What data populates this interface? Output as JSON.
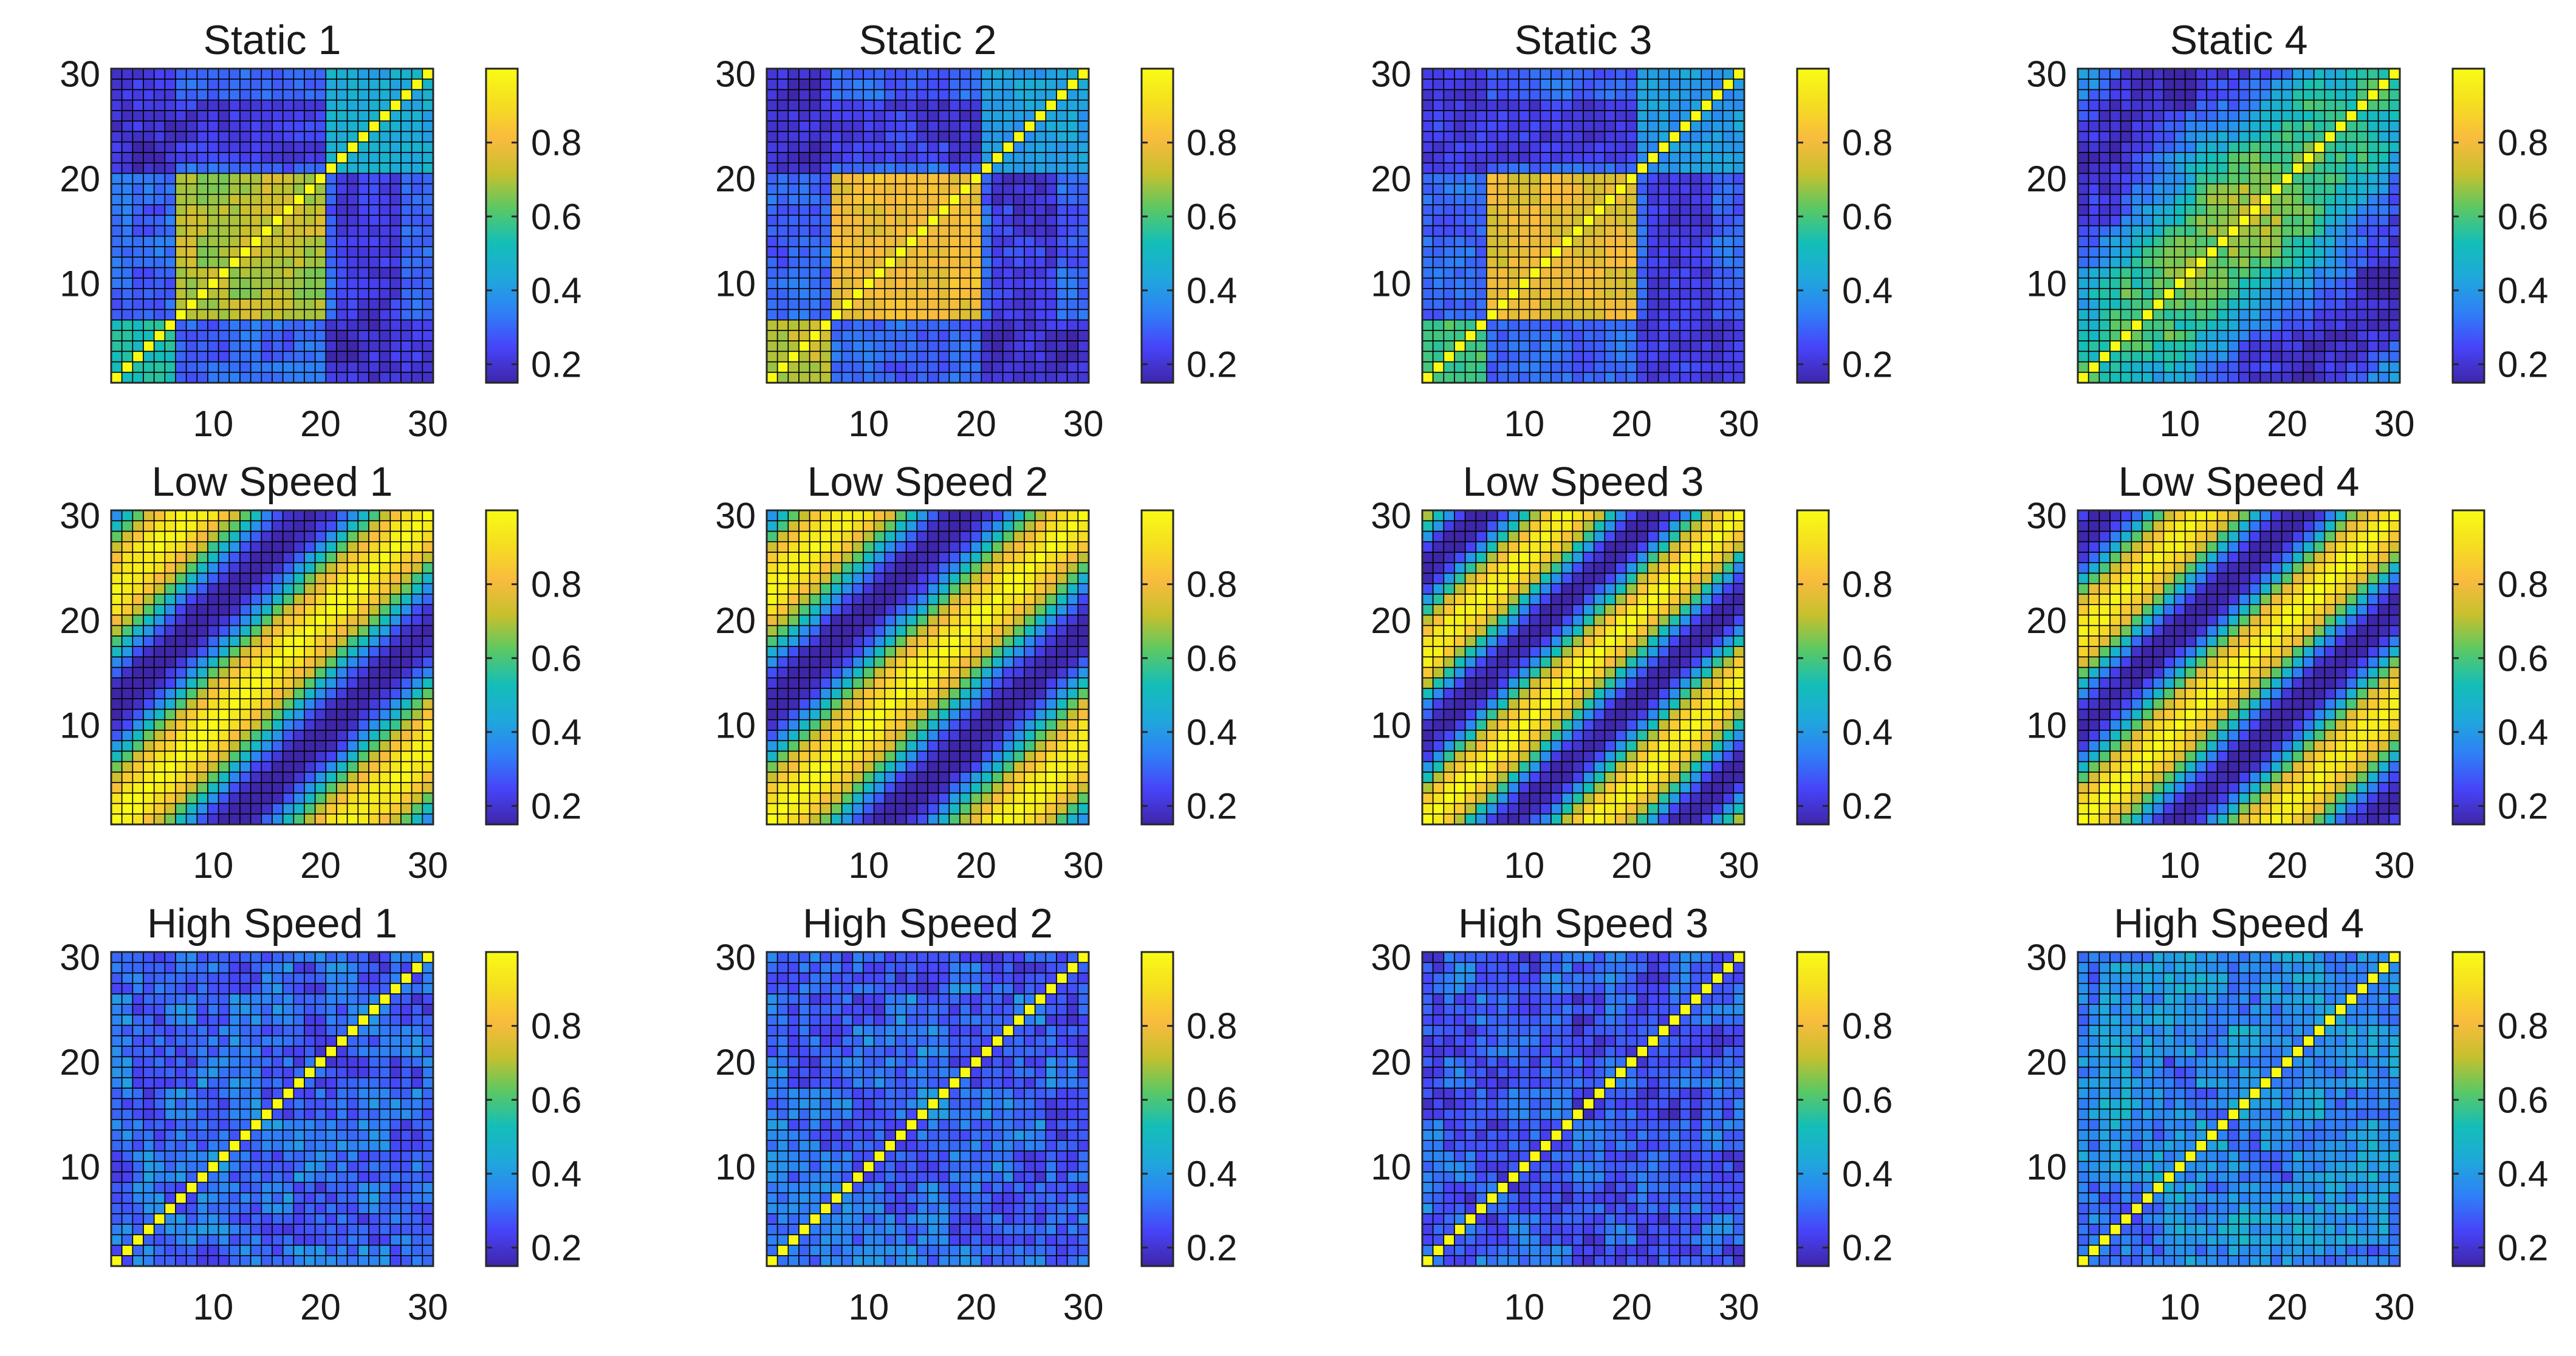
{
  "chart_data": {
    "type": "heatmap",
    "layout": {
      "rows": 3,
      "cols": 4
    },
    "matrix_size": 30,
    "colormap": "parula",
    "colormap_stops": [
      "#3e26a8",
      "#4743f8",
      "#2f7ff7",
      "#1fa8db",
      "#13beb8",
      "#5bc864",
      "#c7c02d",
      "#f9bb3e",
      "#f5de20",
      "#f9fb15"
    ],
    "grid_color": "#000000",
    "diagonal_value": 1.0,
    "axes": {
      "xlim": [
        1,
        30
      ],
      "ylim": [
        1,
        30
      ],
      "xticks": [
        10,
        20,
        30
      ],
      "xtick_labels": [
        "10",
        "20",
        "30"
      ],
      "yticks": [
        10,
        20,
        30
      ],
      "ytick_labels": [
        "10",
        "20",
        "30"
      ]
    },
    "colorbar_range": [
      0.15,
      1.0
    ],
    "panels": [
      {
        "title": "Static 1",
        "pattern": "block",
        "blocks": [
          [
            1,
            6,
            0.55
          ],
          [
            7,
            20,
            0.7
          ],
          [
            21,
            30,
            0.45
          ]
        ],
        "cross_level": 0.2,
        "base": 0.3,
        "colorbar_ticks": [
          0.2,
          0.4,
          0.6,
          0.8
        ],
        "colorbar_tick_labels": [
          "0.2",
          "0.4",
          "0.6",
          "0.8"
        ]
      },
      {
        "title": "Static 2",
        "pattern": "block",
        "blocks": [
          [
            1,
            6,
            0.7
          ],
          [
            7,
            20,
            0.8
          ],
          [
            21,
            30,
            0.4
          ]
        ],
        "cross_level": 0.2,
        "base": 0.3,
        "colorbar_ticks": [
          0.2,
          0.4,
          0.6,
          0.8
        ],
        "colorbar_tick_labels": [
          "0.2",
          "0.4",
          "0.6",
          "0.8"
        ]
      },
      {
        "title": "Static 3",
        "pattern": "block",
        "blocks": [
          [
            1,
            6,
            0.6
          ],
          [
            7,
            20,
            0.78
          ],
          [
            21,
            30,
            0.4
          ]
        ],
        "cross_level": 0.22,
        "base": 0.3,
        "colorbar_ticks": [
          0.2,
          0.4,
          0.6,
          0.8
        ],
        "colorbar_tick_labels": [
          "0.2",
          "0.4",
          "0.6",
          "0.8"
        ]
      },
      {
        "title": "Static 4",
        "pattern": "band",
        "period": 40,
        "amplitude": 0.25,
        "base": 0.45,
        "colorbar_ticks": [
          0.2,
          0.4,
          0.6,
          0.8
        ],
        "colorbar_tick_labels": [
          "0.2",
          "0.4",
          "0.6",
          "0.8"
        ]
      },
      {
        "title": "Low Speed 1",
        "pattern": "periodic",
        "period": 22,
        "amplitude": 0.42,
        "base": 0.55,
        "colorbar_ticks": [
          0.2,
          0.4,
          0.6,
          0.8
        ],
        "colorbar_tick_labels": [
          "0.2",
          "0.4",
          "0.6",
          "0.8"
        ]
      },
      {
        "title": "Low Speed 2",
        "pattern": "periodic",
        "period": 22,
        "amplitude": 0.42,
        "base": 0.55,
        "colorbar_ticks": [
          0.2,
          0.4,
          0.6,
          0.8
        ],
        "colorbar_tick_labels": [
          "0.2",
          "0.4",
          "0.6",
          "0.8"
        ]
      },
      {
        "title": "Low Speed 3",
        "pattern": "periodic",
        "period": 16,
        "amplitude": 0.42,
        "base": 0.55,
        "colorbar_ticks": [
          0.2,
          0.4,
          0.6,
          0.8
        ],
        "colorbar_tick_labels": [
          "0.2",
          "0.4",
          "0.6",
          "0.8"
        ]
      },
      {
        "title": "Low Speed 4",
        "pattern": "periodic",
        "period": 18,
        "amplitude": 0.42,
        "base": 0.55,
        "colorbar_ticks": [
          0.2,
          0.4,
          0.6,
          0.8
        ],
        "colorbar_tick_labels": [
          "0.2",
          "0.4",
          "0.6",
          "0.8"
        ]
      },
      {
        "title": "High Speed 1",
        "pattern": "noise",
        "base": 0.3,
        "amplitude": 0.12,
        "colorbar_ticks": [
          0.2,
          0.4,
          0.6,
          0.8
        ],
        "colorbar_tick_labels": [
          "0.2",
          "0.4",
          "0.6",
          "0.8"
        ]
      },
      {
        "title": "High Speed 2",
        "pattern": "noise",
        "base": 0.3,
        "amplitude": 0.12,
        "colorbar_ticks": [
          0.2,
          0.4,
          0.6,
          0.8
        ],
        "colorbar_tick_labels": [
          "0.2",
          "0.4",
          "0.6",
          "0.8"
        ]
      },
      {
        "title": "High Speed 3",
        "pattern": "noise",
        "base": 0.28,
        "amplitude": 0.12,
        "colorbar_ticks": [
          0.2,
          0.4,
          0.6,
          0.8
        ],
        "colorbar_tick_labels": [
          "0.2",
          "0.4",
          "0.6",
          "0.8"
        ]
      },
      {
        "title": "High Speed 4",
        "pattern": "noise",
        "base": 0.36,
        "amplitude": 0.14,
        "colorbar_ticks": [
          0.2,
          0.4,
          0.6,
          0.8
        ],
        "colorbar_tick_labels": [
          "0.2",
          "0.4",
          "0.6",
          "0.8"
        ]
      }
    ]
  }
}
